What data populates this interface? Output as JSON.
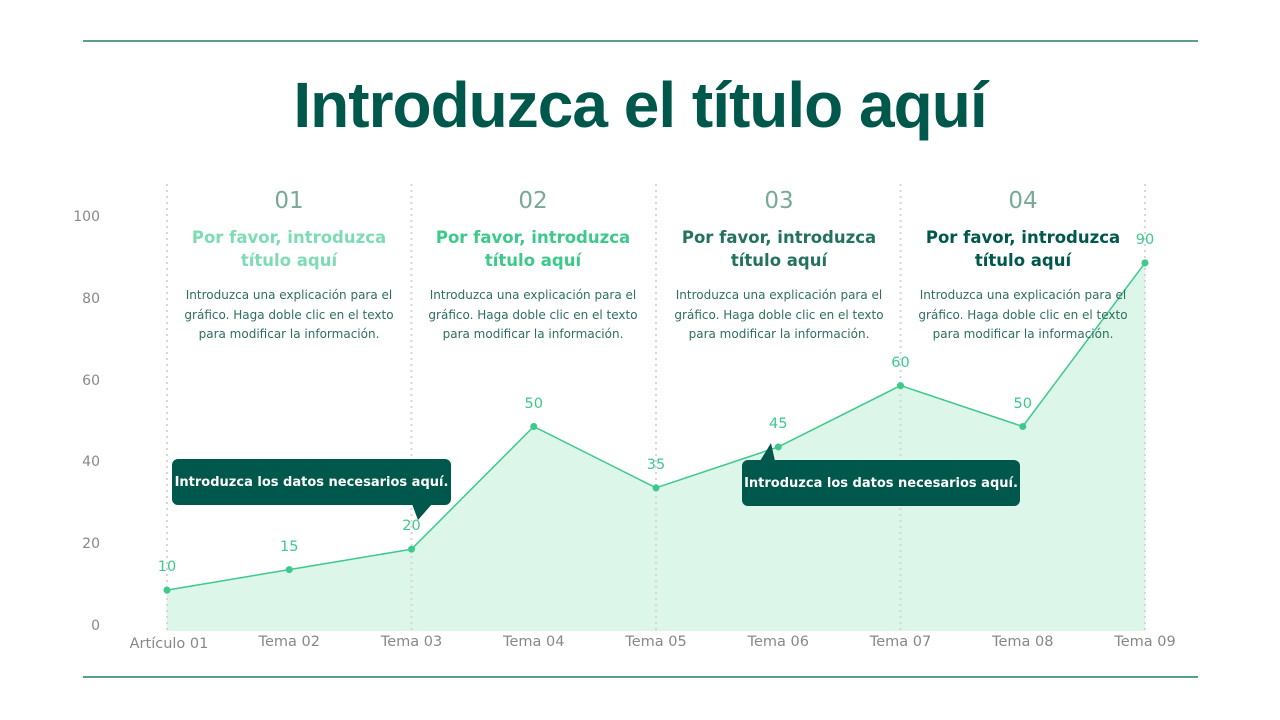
{
  "title": "Introduzca el título aquí",
  "sections": [
    {
      "number": "01",
      "heading": "Por favor, introduzca título aquí",
      "description": "Introduzca una explicación para el gráfico. Haga doble clic en el texto para modificar la información.",
      "color": "#7ddcb4"
    },
    {
      "number": "02",
      "heading": "Por favor, introduzca título aquí",
      "description": "Introduzca una explicación para el gráfico. Haga doble clic en el texto para modificar la información.",
      "color": "#3cc98a"
    },
    {
      "number": "03",
      "heading": "Por favor, introduzca título aquí",
      "description": "Introduzca una explicación para el gráfico. Haga doble clic en el texto para modificar la información.",
      "color": "#23715f"
    },
    {
      "number": "04",
      "heading": "Por favor, introduzca título aquí",
      "description": "Introduzca una explicación para el gráfico. Haga doble clic en el texto para modificar la información.",
      "color": "#00574b"
    }
  ],
  "callouts": [
    "Introduzca los datos necesarios aquí.",
    "Introduzca los datos necesarios aquí."
  ],
  "chart_data": {
    "type": "area",
    "categories": [
      "Artículo 01",
      "Tema 02",
      "Tema 03",
      "Tema 04",
      "Tema 05",
      "Tema 06",
      "Tema 07",
      "Tema 08",
      "Tema 09"
    ],
    "values": [
      10,
      15,
      20,
      50,
      35,
      45,
      60,
      50,
      90
    ],
    "yticks": [
      "0",
      "20",
      "40",
      "60",
      "80",
      "100"
    ],
    "ylim": [
      0,
      100
    ],
    "grid": false,
    "line_color": "#3cc98a",
    "fill_color": "#d8f5e8"
  }
}
